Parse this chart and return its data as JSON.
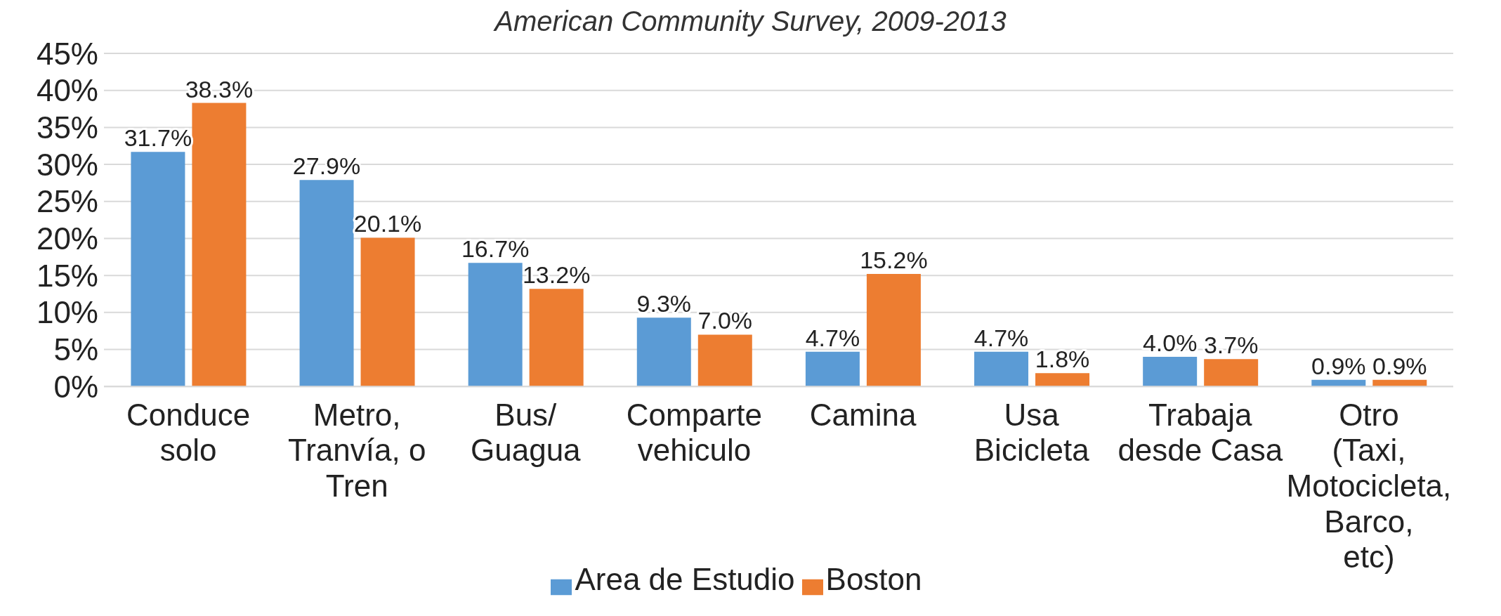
{
  "chart_data": {
    "type": "bar",
    "title": "American Community Survey, 2009-2013",
    "categories": [
      "Conduce solo",
      "Metro, Tranvía, o Tren",
      "Bus/ Guagua",
      "Comparte vehiculo",
      "Camina",
      "Usa Bicicleta",
      "Trabaja desde Casa",
      "Otro (Taxi, Motocicleta, Barco, etc)"
    ],
    "series": [
      {
        "name": "Area de Estudio",
        "color": "#5b9bd5",
        "values": [
          31.7,
          27.9,
          16.7,
          9.3,
          4.7,
          4.7,
          4.0,
          0.9
        ],
        "value_labels": [
          "31.7%",
          "27.9%",
          "16.7%",
          "9.3%",
          "4.7%",
          "4.7%",
          "4.0%",
          "0.9%"
        ]
      },
      {
        "name": "Boston",
        "color": "#ed7d31",
        "values": [
          38.3,
          20.1,
          13.2,
          7.0,
          15.2,
          1.8,
          3.7,
          0.9
        ],
        "value_labels": [
          "38.3%",
          "20.1%",
          "13.2%",
          "7.0%",
          "15.2%",
          "1.8%",
          "3.7%",
          "0.9%"
        ]
      }
    ],
    "ylim": [
      0,
      45
    ],
    "yticks": [
      {
        "value": 0,
        "label": "0%"
      },
      {
        "value": 5,
        "label": "5%"
      },
      {
        "value": 10,
        "label": "10%"
      },
      {
        "value": 15,
        "label": "15%"
      },
      {
        "value": 20,
        "label": "20%"
      },
      {
        "value": 25,
        "label": "25%"
      },
      {
        "value": 30,
        "label": "30%"
      },
      {
        "value": 35,
        "label": "35%"
      },
      {
        "value": 40,
        "label": "40%"
      },
      {
        "value": 45,
        "label": "45%"
      }
    ],
    "grid": "y",
    "legend": "bottom"
  }
}
